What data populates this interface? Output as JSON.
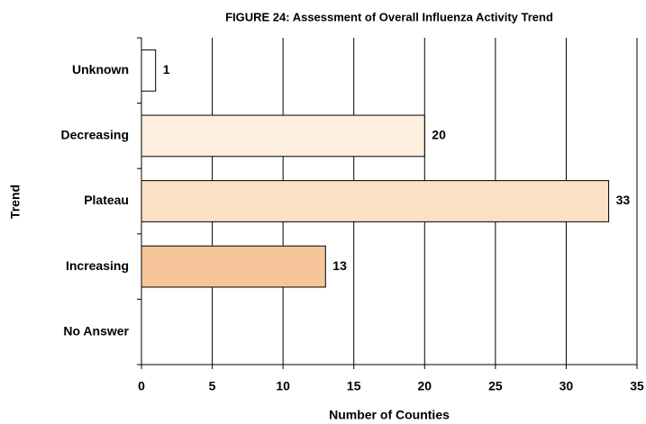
{
  "chart_data": {
    "type": "hbar",
    "title": "FIGURE 24: Assessment of Overall Influenza Activity Trend",
    "x_label": "Number of Counties",
    "y_label": "Trend",
    "categories": [
      "Unknown",
      "Decreasing",
      "Plateau",
      "Increasing",
      "No Answer"
    ],
    "values": [
      1,
      20,
      33,
      13,
      null
    ],
    "colors": [
      "#ffffff",
      "#fdeedd",
      "#fbe0c6",
      "#f6c59a"
    ],
    "bar_edge": "#000000",
    "xlim": [
      0,
      35
    ],
    "xticks": [
      0,
      5,
      10,
      15,
      20,
      25,
      30,
      35
    ],
    "grid": true
  }
}
